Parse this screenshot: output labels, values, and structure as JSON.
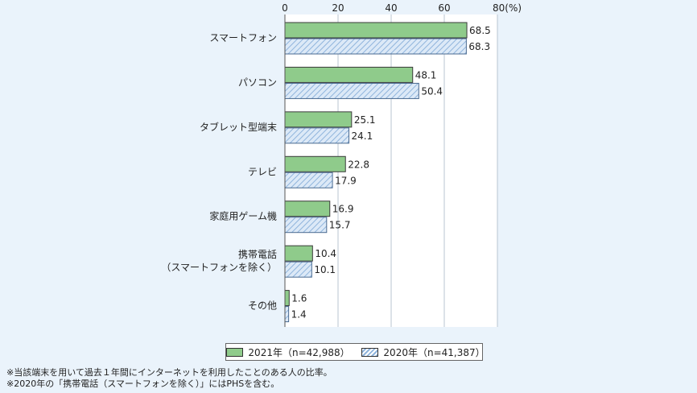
{
  "chart_data": {
    "type": "bar",
    "orientation": "horizontal",
    "unit_label": "80(%)",
    "xlim": [
      0,
      80
    ],
    "xticks": [
      "0",
      "20",
      "40",
      "60"
    ],
    "categories": [
      [
        "スマートフォン"
      ],
      [
        "パソコン"
      ],
      [
        "タブレット型端末"
      ],
      [
        "テレビ"
      ],
      [
        "家庭用ゲーム機"
      ],
      [
        "携帯電話",
        "（スマートフォンを除く）"
      ],
      [
        "その他"
      ]
    ],
    "series": [
      {
        "name": "2021年（n=42,988）",
        "values": [
          68.5,
          48.1,
          25.1,
          22.8,
          16.9,
          10.4,
          1.6
        ]
      },
      {
        "name": "2020年（n=41,387）",
        "values": [
          68.3,
          50.4,
          24.1,
          17.9,
          15.7,
          10.1,
          1.4
        ]
      }
    ],
    "value_labels": [
      [
        "68.5",
        "48.1",
        "25.1",
        "22.8",
        "16.9",
        "10.4",
        "1.6"
      ],
      [
        "68.3",
        "50.4",
        "24.1",
        "17.9",
        "15.7",
        "10.1",
        "1.4"
      ]
    ],
    "colors": {
      "series0": "#8fcb8b",
      "series1_fill": "#dce9f7",
      "series1_hatch": "#8fb4dc",
      "grid": "#b8c4d0"
    },
    "grid": true,
    "legend_position": "bottom"
  },
  "notes": [
    "※当該端末を用いて過去１年間にインターネットを利用したことのある人の比率。",
    "※2020年の「携帯電話（スマートフォンを除く）」にはPHSを含む。"
  ]
}
